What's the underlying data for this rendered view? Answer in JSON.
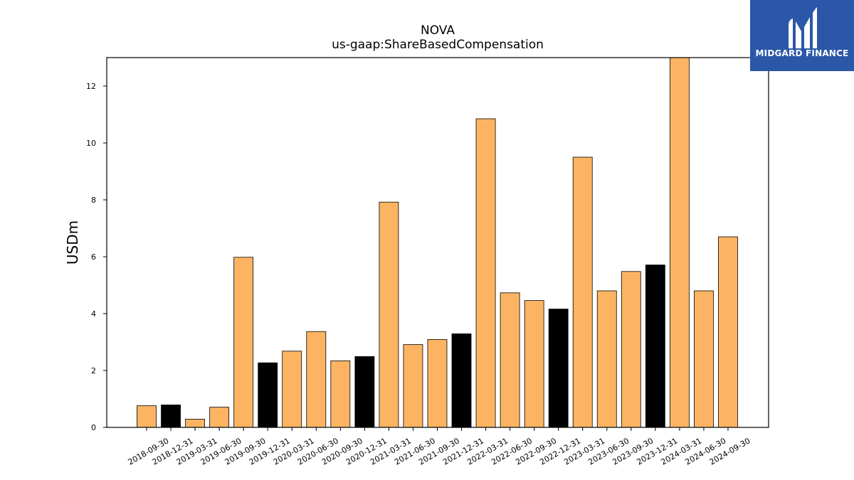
{
  "logo": {
    "text": "MIDGARD FINANCE",
    "icon": "midgard-m-logo-icon",
    "background": "#2b57a8"
  },
  "chart_data": {
    "type": "bar",
    "title": "NOVA",
    "subtitle": "us-gaap:ShareBasedCompensation",
    "xlabel": "",
    "ylabel": "USDm",
    "ylim": [
      0,
      13
    ],
    "yticks": [
      0,
      2,
      4,
      6,
      8,
      10,
      12
    ],
    "grid": false,
    "colors": {
      "normal": "#fdb462",
      "year_end": "#000000",
      "edge": "#000000"
    },
    "categories": [
      "2018-09-30",
      "2018-12-31",
      "2019-03-31",
      "2019-06-30",
      "2019-09-30",
      "2019-12-31",
      "2020-03-31",
      "2020-06-30",
      "2020-09-30",
      "2020-12-31",
      "2021-03-31",
      "2021-06-30",
      "2021-09-30",
      "2021-12-31",
      "2022-03-31",
      "2022-06-30",
      "2022-09-30",
      "2022-12-31",
      "2023-03-31",
      "2023-06-30",
      "2023-09-30",
      "2023-12-31",
      "2024-03-31",
      "2024-06-30",
      "2024-09-30"
    ],
    "values": [
      0.76,
      0.79,
      0.29,
      0.71,
      5.98,
      2.27,
      2.68,
      3.37,
      2.34,
      2.49,
      7.92,
      2.91,
      3.09,
      3.29,
      10.85,
      4.73,
      4.46,
      4.16,
      9.5,
      4.8,
      5.48,
      5.71,
      13.0,
      4.8,
      6.7
    ],
    "highlight": [
      false,
      true,
      false,
      false,
      false,
      true,
      false,
      false,
      false,
      true,
      false,
      false,
      false,
      true,
      false,
      false,
      false,
      true,
      false,
      false,
      false,
      true,
      false,
      false,
      false
    ]
  }
}
